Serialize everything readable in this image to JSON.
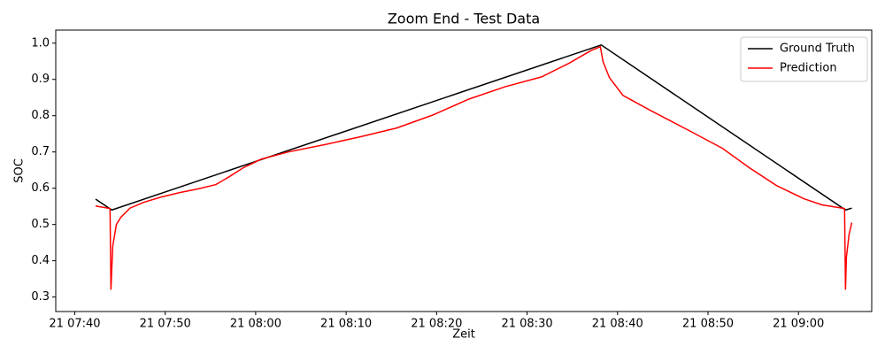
{
  "chart_data": {
    "type": "line",
    "title": "Zoom End - Test Data",
    "x_label": "Zeit",
    "y_label": "SOC",
    "xlim": [
      "21 07:37:54",
      "21 09:08:06"
    ],
    "ylim": [
      0.26,
      1.036
    ],
    "xticks": [
      "21 07:40",
      "21 07:50",
      "21 08:00",
      "21 08:10",
      "21 08:20",
      "21 08:30",
      "21 08:40",
      "21 08:50",
      "21 09:00"
    ],
    "yticks": [
      0.3,
      0.4,
      0.5,
      0.6,
      0.7,
      0.8,
      0.9,
      {
        "value": 1,
        "label": "1.0"
      }
    ],
    "legend": "upper right",
    "series": [
      {
        "name": "Ground Truth",
        "color": "#000000",
        "x": [
          "21 07:42:18",
          "21 07:44:06",
          "21 08:38:12",
          "21 09:05:12",
          "21 09:05:54"
        ],
        "values": [
          0.57,
          0.54,
          0.995,
          0.54,
          0.545
        ]
      },
      {
        "name": "Prediction",
        "color": "#ff0000",
        "x": [
          "21 07:42:18",
          "21 07:43:54",
          "21 07:44:00",
          "21 07:44:12",
          "21 07:44:36",
          "21 07:45:06",
          "21 07:46:06",
          "21 07:47:36",
          "21 07:49:36",
          "21 07:51:36",
          "21 07:53:36",
          "21 07:55:36",
          "21 07:57:06",
          "21 07:58:36",
          "21 08:00:36",
          "21 08:03:36",
          "21 08:07:36",
          "21 08:11:36",
          "21 08:15:36",
          "21 08:19:36",
          "21 08:23:36",
          "21 08:27:36",
          "21 08:31:36",
          "21 08:34:36",
          "21 08:37:06",
          "21 08:38:06",
          "21 08:38:24",
          "21 08:39:06",
          "21 08:40:36",
          "21 08:43:36",
          "21 08:47:36",
          "21 08:51:36",
          "21 08:54:36",
          "21 08:57:36",
          "21 09:00:36",
          "21 09:02:36",
          "21 09:05:06",
          "21 09:05:12",
          "21 09:05:18",
          "21 09:05:36",
          "21 09:05:54"
        ],
        "values": [
          0.551,
          0.544,
          0.32,
          0.44,
          0.5,
          0.52,
          0.545,
          0.561,
          0.576,
          0.588,
          0.598,
          0.61,
          0.632,
          0.656,
          0.68,
          0.7,
          0.72,
          0.742,
          0.766,
          0.802,
          0.846,
          0.88,
          0.907,
          0.944,
          0.98,
          0.99,
          0.949,
          0.905,
          0.856,
          0.815,
          0.763,
          0.71,
          0.656,
          0.607,
          0.571,
          0.554,
          0.544,
          0.32,
          0.41,
          0.473,
          0.505
        ]
      }
    ]
  }
}
